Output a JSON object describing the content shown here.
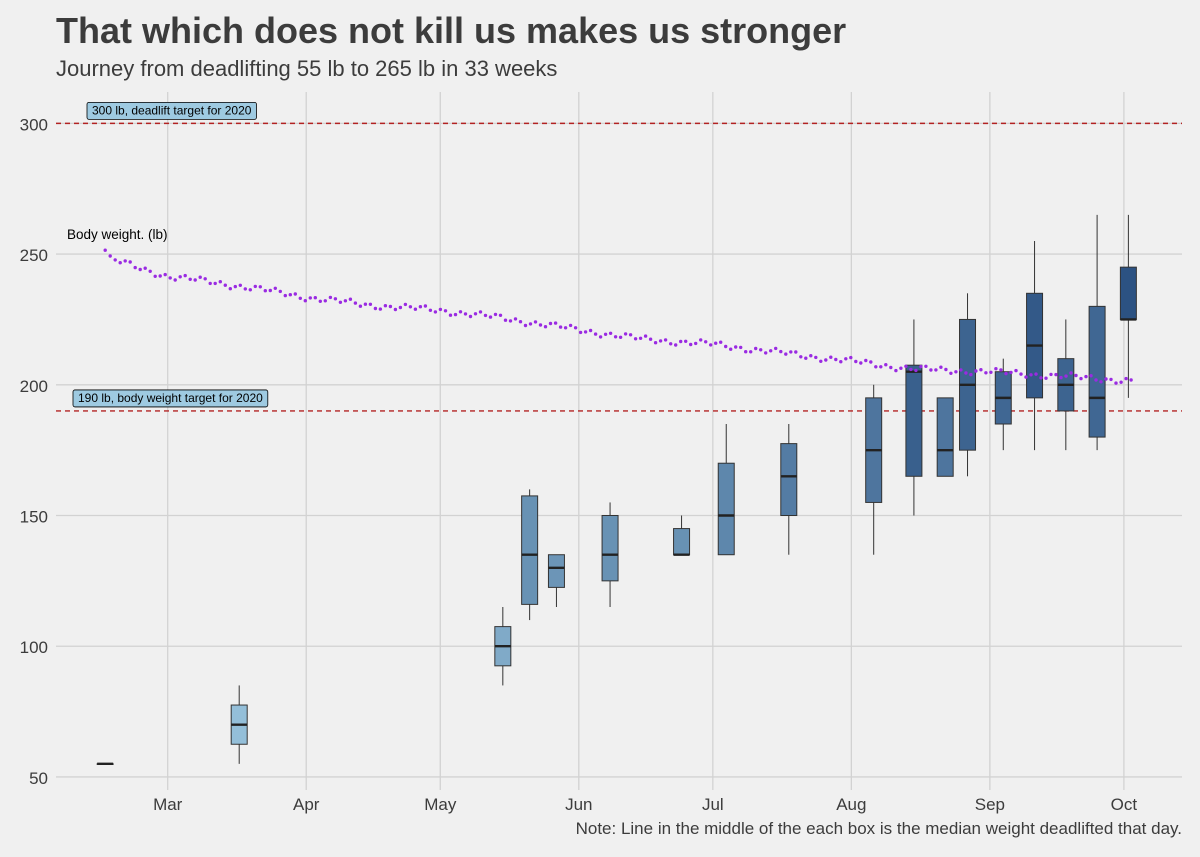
{
  "header": {
    "title": "That which does not kill us makes us stronger",
    "subtitle": "Journey from deadlifting 55 lb to 265 lb in 33 weeks"
  },
  "caption": "Note: Line in the middle of the each box is the median weight deadlifted that day.",
  "colors": {
    "background": "#f0f0f0",
    "grid": "#d2d2d2",
    "target_line": "#b22222",
    "body_weight_points": "#9a2be2",
    "box_outline": "#333333",
    "box_fill_light": "#9ecae1",
    "box_fill_dark": "#2c5282"
  },
  "chart_data": {
    "type": "box",
    "x_axis": {
      "type": "date",
      "min": "2020-02-05",
      "max": "2020-10-14",
      "ticks": [
        {
          "date": "2020-03-01",
          "label": "Mar"
        },
        {
          "date": "2020-04-01",
          "label": "Apr"
        },
        {
          "date": "2020-05-01",
          "label": "May"
        },
        {
          "date": "2020-06-01",
          "label": "Jun"
        },
        {
          "date": "2020-07-01",
          "label": "Jul"
        },
        {
          "date": "2020-08-01",
          "label": "Aug"
        },
        {
          "date": "2020-09-01",
          "label": "Sep"
        },
        {
          "date": "2020-10-01",
          "label": "Oct"
        }
      ]
    },
    "y_axis": {
      "ylim": [
        45,
        312
      ],
      "ticks": [
        50,
        100,
        150,
        200,
        250,
        300
      ]
    },
    "grid": true,
    "reference_lines": [
      {
        "y": 300,
        "label": "300 lb, deadlift target for 2020"
      },
      {
        "y": 190,
        "label": "190 lb, body weight target for 2020"
      }
    ],
    "body_weight_label": "Body weight. (lb)",
    "deadlift_boxes": [
      {
        "date": "2020-02-16",
        "min": 55,
        "q1": 55,
        "median": 55,
        "q3": 55,
        "max": 55
      },
      {
        "date": "2020-03-17",
        "min": 55,
        "q1": 62.5,
        "median": 70,
        "q3": 77.5,
        "max": 85
      },
      {
        "date": "2020-05-15",
        "min": 85,
        "q1": 92.5,
        "median": 100,
        "q3": 107.5,
        "max": 115
      },
      {
        "date": "2020-05-21",
        "min": 110,
        "q1": 116,
        "median": 135,
        "q3": 157.5,
        "max": 160
      },
      {
        "date": "2020-05-27",
        "min": 115,
        "q1": 122.5,
        "median": 130,
        "q3": 135,
        "max": 135
      },
      {
        "date": "2020-06-08",
        "min": 115,
        "q1": 125,
        "median": 135,
        "q3": 150,
        "max": 155
      },
      {
        "date": "2020-06-24",
        "min": 135,
        "q1": 135,
        "median": 135,
        "q3": 145,
        "max": 150
      },
      {
        "date": "2020-07-04",
        "min": 135,
        "q1": 135,
        "median": 150,
        "q3": 170,
        "max": 185
      },
      {
        "date": "2020-07-18",
        "min": 135,
        "q1": 150,
        "median": 165,
        "q3": 177.5,
        "max": 185
      },
      {
        "date": "2020-08-06",
        "min": 135,
        "q1": 155,
        "median": 175,
        "q3": 195,
        "max": 200
      },
      {
        "date": "2020-08-15",
        "min": 150,
        "q1": 165,
        "median": 205,
        "q3": 207.5,
        "max": 225
      },
      {
        "date": "2020-08-22",
        "min": 165,
        "q1": 165,
        "median": 175,
        "q3": 195,
        "max": 195
      },
      {
        "date": "2020-08-27",
        "min": 165,
        "q1": 175,
        "median": 200,
        "q3": 225,
        "max": 235
      },
      {
        "date": "2020-09-04",
        "min": 175,
        "q1": 185,
        "median": 195,
        "q3": 205,
        "max": 210
      },
      {
        "date": "2020-09-11",
        "min": 175,
        "q1": 195,
        "median": 215,
        "q3": 235,
        "max": 255
      },
      {
        "date": "2020-09-18",
        "min": 175,
        "q1": 190,
        "median": 200,
        "q3": 210,
        "max": 225
      },
      {
        "date": "2020-09-25",
        "min": 175,
        "q1": 180,
        "median": 195,
        "q3": 230,
        "max": 265
      },
      {
        "date": "2020-10-02",
        "min": 195,
        "q1": 225,
        "median": 225,
        "q3": 245,
        "max": 265
      }
    ],
    "body_weight_trend": [
      {
        "date": "2020-02-16",
        "value": 251.5
      },
      {
        "date": "2020-02-17",
        "value": 248.2
      },
      {
        "date": "2020-02-23",
        "value": 245
      },
      {
        "date": "2020-03-01",
        "value": 241.5
      },
      {
        "date": "2020-03-10",
        "value": 239.5
      },
      {
        "date": "2020-03-20",
        "value": 237
      },
      {
        "date": "2020-04-01",
        "value": 233.5
      },
      {
        "date": "2020-04-15",
        "value": 230.5
      },
      {
        "date": "2020-05-01",
        "value": 228.5
      },
      {
        "date": "2020-05-15",
        "value": 225.5
      },
      {
        "date": "2020-06-01",
        "value": 221
      },
      {
        "date": "2020-06-15",
        "value": 217.5
      },
      {
        "date": "2020-07-01",
        "value": 215.5
      },
      {
        "date": "2020-07-15",
        "value": 212.5
      },
      {
        "date": "2020-08-01",
        "value": 209
      },
      {
        "date": "2020-08-15",
        "value": 206
      },
      {
        "date": "2020-09-01",
        "value": 205
      },
      {
        "date": "2020-09-15",
        "value": 203.5
      },
      {
        "date": "2020-10-03",
        "value": 201.5
      }
    ]
  }
}
